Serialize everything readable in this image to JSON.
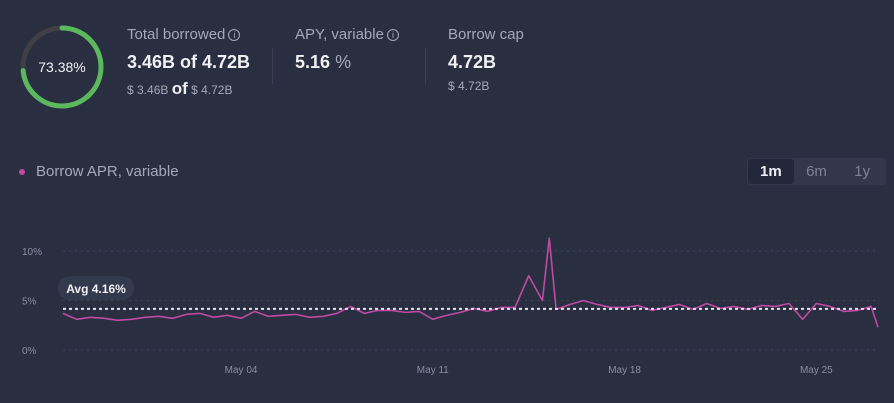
{
  "gauge": {
    "label": "73.38%",
    "fraction": 0.7338,
    "color": "#5cb85c",
    "track": "#3f3f44"
  },
  "stats": [
    {
      "label": "Total borrowed",
      "value": "3.46B of 4.72B",
      "sub_a": "$ 3.46B",
      "sub_of": "of",
      "sub_b": "$ 4.72B",
      "info": "i"
    },
    {
      "label": "APY, variable",
      "value": "5.16",
      "unit": "%",
      "info": "i"
    },
    {
      "label": "Borrow cap",
      "value": "4.72B",
      "sub": "$ 4.72B"
    }
  ],
  "legend": {
    "label": "Borrow APR, variable",
    "color": "#c04aa3"
  },
  "range_toggle": {
    "options": [
      "1m",
      "6m",
      "1y"
    ],
    "selected": "1m"
  },
  "chart_data": {
    "type": "line",
    "series": [
      {
        "name": "Borrow APR, variable",
        "color": "#c04aa3",
        "points": [
          [
            "Apr 27 12:00",
            3.7
          ],
          [
            "Apr 28 00:00",
            3.1
          ],
          [
            "Apr 28 12:00",
            3.3
          ],
          [
            "Apr 29 00:00",
            3.2
          ],
          [
            "Apr 29 12:00",
            3.0
          ],
          [
            "Apr 30 00:00",
            3.1
          ],
          [
            "Apr 30 12:00",
            3.3
          ],
          [
            "May 01 00:00",
            3.4
          ],
          [
            "May 01 12:00",
            3.2
          ],
          [
            "May 02 00:00",
            3.6
          ],
          [
            "May 02 12:00",
            3.7
          ],
          [
            "May 03 00:00",
            3.3
          ],
          [
            "May 03 12:00",
            3.5
          ],
          [
            "May 04 00:00",
            3.2
          ],
          [
            "May 04 12:00",
            3.9
          ],
          [
            "May 05 00:00",
            3.4
          ],
          [
            "May 05 12:00",
            3.5
          ],
          [
            "May 06 00:00",
            3.6
          ],
          [
            "May 06 12:00",
            3.3
          ],
          [
            "May 07 00:00",
            3.4
          ],
          [
            "May 07 12:00",
            3.7
          ],
          [
            "May 08 00:00",
            4.4
          ],
          [
            "May 08 12:00",
            3.7
          ],
          [
            "May 09 00:00",
            4.0
          ],
          [
            "May 09 12:00",
            4.0
          ],
          [
            "May 10 00:00",
            3.8
          ],
          [
            "May 10 12:00",
            3.9
          ],
          [
            "May 11 00:00",
            3.1
          ],
          [
            "May 11 12:00",
            3.5
          ],
          [
            "May 12 00:00",
            3.8
          ],
          [
            "May 12 12:00",
            4.2
          ],
          [
            "May 13 00:00",
            3.9
          ],
          [
            "May 13 12:00",
            4.3
          ],
          [
            "May 14 00:00",
            4.3
          ],
          [
            "May 14 12:00",
            7.5
          ],
          [
            "May 15 00:00",
            5.0
          ],
          [
            "May 15 06:00",
            11.3
          ],
          [
            "May 15 12:00",
            4.1
          ],
          [
            "May 16 00:00",
            4.6
          ],
          [
            "May 16 12:00",
            5.0
          ],
          [
            "May 17 00:00",
            4.6
          ],
          [
            "May 17 12:00",
            4.3
          ],
          [
            "May 18 00:00",
            4.3
          ],
          [
            "May 18 12:00",
            4.5
          ],
          [
            "May 19 00:00",
            4.0
          ],
          [
            "May 19 12:00",
            4.3
          ],
          [
            "May 20 00:00",
            4.6
          ],
          [
            "May 20 12:00",
            4.1
          ],
          [
            "May 21 00:00",
            4.7
          ],
          [
            "May 21 12:00",
            4.2
          ],
          [
            "May 22 00:00",
            4.4
          ],
          [
            "May 22 12:00",
            4.1
          ],
          [
            "May 23 00:00",
            4.5
          ],
          [
            "May 23 12:00",
            4.4
          ],
          [
            "May 24 00:00",
            4.7
          ],
          [
            "May 24 12:00",
            3.1
          ],
          [
            "May 25 00:00",
            4.7
          ],
          [
            "May 25 12:00",
            4.4
          ],
          [
            "May 26 00:00",
            3.9
          ],
          [
            "May 26 12:00",
            4.0
          ],
          [
            "May 27 00:00",
            4.4
          ],
          [
            "May 27 06:00",
            2.3
          ]
        ]
      }
    ],
    "average": {
      "value": 4.16,
      "label": "Avg 4.16%"
    },
    "y_ticks": [
      {
        "v": 0,
        "label": "0%"
      },
      {
        "v": 5,
        "label": "5%"
      },
      {
        "v": 10,
        "label": "10%"
      }
    ],
    "x_ticks": [
      {
        "v": "May 04 00:00",
        "label": "May 04"
      },
      {
        "v": "May 11 00:00",
        "label": "May 11"
      },
      {
        "v": "May 18 00:00",
        "label": "May 18"
      },
      {
        "v": "May 25 00:00",
        "label": "May 25"
      }
    ],
    "xlim": [
      "Apr 27 12:00",
      "May 27 06:00"
    ],
    "ylim": [
      0,
      10
    ],
    "grid": true
  }
}
